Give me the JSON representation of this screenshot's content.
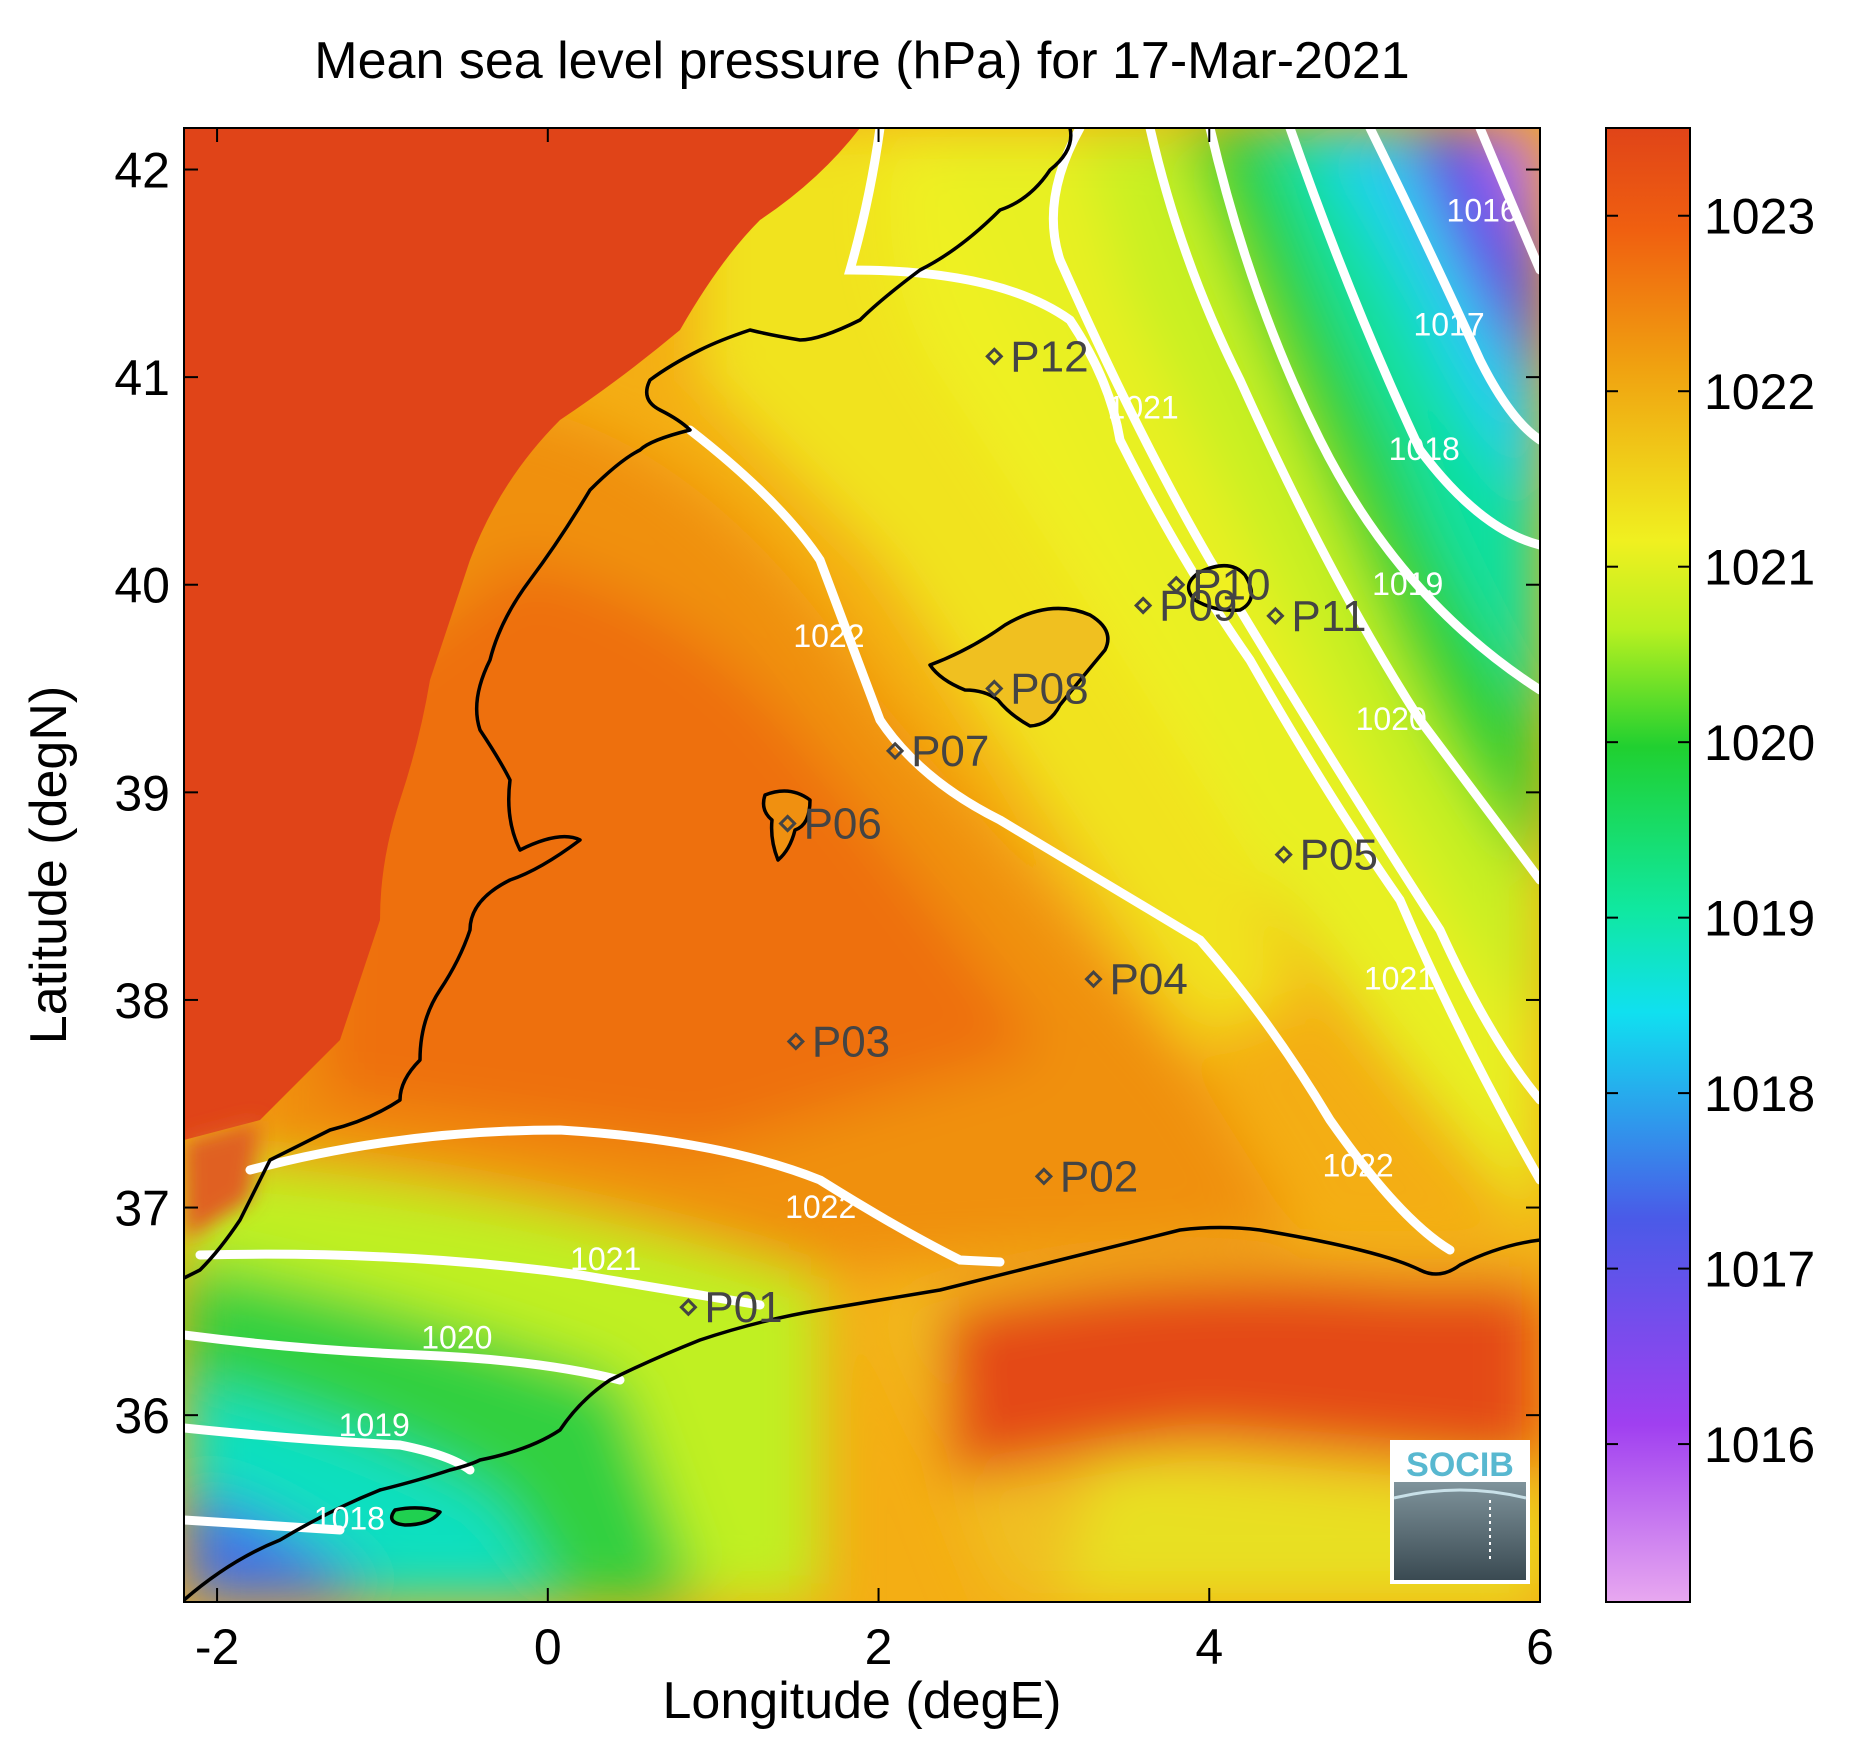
{
  "title": "Mean sea level pressure (hPa) for 17-Mar-2021",
  "xlabel": "Longitude (degE)",
  "ylabel": "Latitude (degN)",
  "logo_text": "SOCIB",
  "chart_data": {
    "type": "heatmap",
    "variable": "Mean sea level pressure (hPa)",
    "date": "17-Mar-2021",
    "xlim": [
      -2.2,
      6.0
    ],
    "ylim": [
      35.1,
      42.2
    ],
    "x_ticks": [
      "-2",
      "0",
      "2",
      "4",
      "6"
    ],
    "y_ticks": [
      "36",
      "37",
      "38",
      "39",
      "40",
      "41",
      "42"
    ],
    "colorbar": {
      "range": [
        1015.1,
        1023.5
      ],
      "ticks": [
        "1016",
        "1017",
        "1018",
        "1019",
        "1020",
        "1021",
        "1022",
        "1023"
      ],
      "colormap": [
        "#e8a0f0",
        "#a040f0",
        "#5050e8",
        "#10d8f0",
        "#10e8a0",
        "#20d030",
        "#c0f020",
        "#f0f020",
        "#f0b010",
        "#f06010",
        "#e04418"
      ]
    },
    "contour_labels": [
      {
        "text": "1016",
        "lon": 5.65,
        "lat": 41.75
      },
      {
        "text": "1017",
        "lon": 5.45,
        "lat": 41.2
      },
      {
        "text": "1018",
        "lon": 5.3,
        "lat": 40.6
      },
      {
        "text": "1019",
        "lon": 5.2,
        "lat": 39.95
      },
      {
        "text": "1020",
        "lon": 5.1,
        "lat": 39.3
      },
      {
        "text": "1021",
        "lon": 5.15,
        "lat": 38.05
      },
      {
        "text": "1022",
        "lon": 4.9,
        "lat": 37.15
      },
      {
        "text": "1021",
        "lon": 3.6,
        "lat": 40.8
      },
      {
        "text": "1022",
        "lon": 1.7,
        "lat": 39.7
      },
      {
        "text": "1022",
        "lon": 1.65,
        "lat": 36.95
      },
      {
        "text": "1021",
        "lon": 0.35,
        "lat": 36.7
      },
      {
        "text": "1020",
        "lon": -0.55,
        "lat": 36.32
      },
      {
        "text": "1019",
        "lon": -1.05,
        "lat": 35.9
      },
      {
        "text": "1018",
        "lon": -1.2,
        "lat": 35.45
      }
    ],
    "stations": [
      {
        "name": "P01",
        "lon": 0.85,
        "lat": 36.52
      },
      {
        "name": "P02",
        "lon": 3.0,
        "lat": 37.15
      },
      {
        "name": "P03",
        "lon": 1.5,
        "lat": 37.8
      },
      {
        "name": "P04",
        "lon": 3.3,
        "lat": 38.1
      },
      {
        "name": "P05",
        "lon": 4.45,
        "lat": 38.7
      },
      {
        "name": "P06",
        "lon": 1.45,
        "lat": 38.85
      },
      {
        "name": "P07",
        "lon": 2.1,
        "lat": 39.2
      },
      {
        "name": "P08",
        "lon": 2.7,
        "lat": 39.5
      },
      {
        "name": "P09",
        "lon": 3.6,
        "lat": 39.9
      },
      {
        "name": "P10",
        "lon": 3.8,
        "lat": 40.0
      },
      {
        "name": "P11",
        "lon": 4.4,
        "lat": 39.85
      },
      {
        "name": "P12",
        "lon": 2.7,
        "lat": 41.1
      }
    ]
  }
}
